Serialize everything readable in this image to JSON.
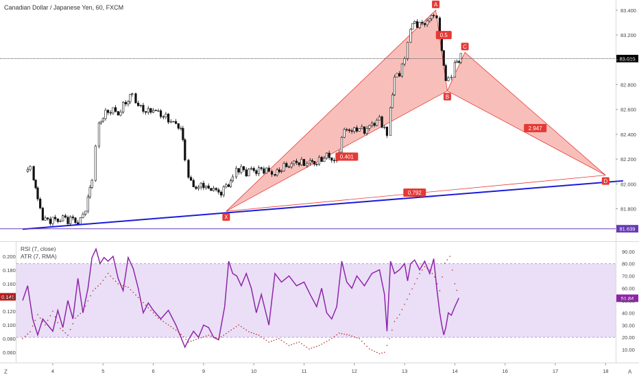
{
  "header": {
    "title": "Canadian Dollar / Japanese Yen, 60, FXCM"
  },
  "indicators": {
    "rsi_label": "RSI (7, close)",
    "atr_label": "ATR (7, RMA)"
  },
  "corners": {
    "left": "Z",
    "right": "A"
  },
  "chart_data": [
    {
      "type": "candlestick",
      "title": "Canadian Dollar / Japanese Yen, 60, FXCM",
      "xlabel": "",
      "ylabel": "",
      "x_ticks": [
        "4",
        "5",
        "6",
        "9",
        "10",
        "11",
        "12",
        "13",
        "14",
        "16",
        "17",
        "18",
        "19"
      ],
      "x_tick_day_index": [
        0,
        1,
        2,
        3,
        4,
        5,
        6,
        7,
        8,
        9,
        10,
        11,
        12
      ],
      "y_ticks": [
        "81.800",
        "82.000",
        "82.200",
        "82.400",
        "82.600",
        "82.800",
        "83.000",
        "83.200",
        "83.400"
      ],
      "ylim": [
        81.56,
        83.46
      ],
      "current_price": {
        "label": "83.010",
        "value": 83.01,
        "color": "#000000"
      },
      "support_level": {
        "label": "81.639",
        "value": 81.639,
        "color": "#673ab7"
      },
      "trendline": {
        "color": "#1a1adb",
        "from": {
          "day": -0.6,
          "price": 81.635
        },
        "to": {
          "day": 11.35,
          "price": 82.025
        }
      },
      "close_path": [
        [
          -0.55,
          82.1
        ],
        [
          -0.45,
          82.12
        ],
        [
          -0.38,
          82.05
        ],
        [
          -0.3,
          81.87
        ],
        [
          -0.2,
          81.73
        ],
        [
          -0.1,
          81.7
        ],
        [
          0.0,
          81.72
        ],
        [
          0.1,
          81.7
        ],
        [
          0.2,
          81.73
        ],
        [
          0.3,
          81.71
        ],
        [
          0.4,
          81.72
        ],
        [
          0.5,
          81.68
        ],
        [
          0.6,
          81.75
        ],
        [
          0.7,
          81.87
        ],
        [
          0.78,
          82.05
        ],
        [
          0.85,
          82.3
        ],
        [
          0.92,
          82.48
        ],
        [
          1.0,
          82.55
        ],
        [
          1.1,
          82.58
        ],
        [
          1.2,
          82.6
        ],
        [
          1.3,
          82.56
        ],
        [
          1.4,
          82.63
        ],
        [
          1.5,
          82.68
        ],
        [
          1.58,
          82.72
        ],
        [
          1.65,
          82.66
        ],
        [
          1.75,
          82.61
        ],
        [
          1.9,
          82.58
        ],
        [
          2.0,
          82.6
        ],
        [
          2.15,
          82.56
        ],
        [
          2.3,
          82.52
        ],
        [
          2.45,
          82.48
        ],
        [
          2.55,
          82.45
        ],
        [
          2.63,
          82.2
        ],
        [
          2.7,
          82.05
        ],
        [
          2.8,
          81.98
        ],
        [
          2.9,
          81.97
        ],
        [
          3.0,
          82.0
        ],
        [
          3.1,
          81.95
        ],
        [
          3.2,
          81.97
        ],
        [
          3.3,
          81.92
        ],
        [
          3.4,
          81.96
        ],
        [
          3.5,
          82.0
        ],
        [
          3.58,
          82.05
        ],
        [
          3.65,
          82.12
        ],
        [
          3.75,
          82.12
        ],
        [
          3.85,
          82.09
        ],
        [
          3.95,
          82.12
        ],
        [
          4.05,
          82.1
        ],
        [
          4.15,
          82.12
        ],
        [
          4.3,
          82.1
        ],
        [
          4.42,
          82.07
        ],
        [
          4.55,
          82.13
        ],
        [
          4.7,
          82.15
        ],
        [
          4.85,
          82.18
        ],
        [
          5.0,
          82.16
        ],
        [
          5.12,
          82.18
        ],
        [
          5.25,
          82.17
        ],
        [
          5.35,
          82.2
        ],
        [
          5.45,
          82.23
        ],
        [
          5.55,
          82.2
        ],
        [
          5.65,
          82.18
        ],
        [
          5.75,
          82.38
        ],
        [
          5.85,
          82.45
        ],
        [
          5.95,
          82.42
        ],
        [
          6.05,
          82.45
        ],
        [
          6.2,
          82.43
        ],
        [
          6.35,
          82.48
        ],
        [
          6.5,
          82.52
        ],
        [
          6.6,
          82.45
        ],
        [
          6.65,
          82.38
        ],
        [
          6.72,
          82.62
        ],
        [
          6.8,
          82.85
        ],
        [
          6.9,
          82.9
        ],
        [
          7.0,
          83.0
        ],
        [
          7.06,
          83.15
        ],
        [
          7.12,
          83.25
        ],
        [
          7.2,
          83.3
        ],
        [
          7.3,
          83.28
        ],
        [
          7.4,
          83.3
        ],
        [
          7.5,
          83.32
        ],
        [
          7.58,
          83.38
        ],
        [
          7.64,
          83.32
        ],
        [
          7.7,
          83.2
        ],
        [
          7.74,
          83.1
        ],
        [
          7.78,
          82.95
        ],
        [
          7.82,
          82.82
        ],
        [
          7.87,
          82.85
        ],
        [
          7.93,
          82.88
        ],
        [
          8.0,
          82.95
        ],
        [
          8.08,
          83.01
        ],
        [
          8.12,
          83.05
        ]
      ],
      "harmonic_pattern": {
        "points": [
          {
            "label": "X",
            "day": 3.45,
            "price": 81.78
          },
          {
            "label": "A",
            "day": 7.62,
            "price": 83.4
          },
          {
            "label": "B",
            "day": 7.85,
            "price": 82.75
          },
          {
            "label": "C",
            "day": 8.2,
            "price": 83.06
          },
          {
            "label": "D",
            "day": 11.0,
            "price": 82.07
          }
        ],
        "ratios": [
          {
            "label": "0.401",
            "day": 5.85,
            "price": 82.22
          },
          {
            "label": "0.5",
            "day": 7.78,
            "price": 83.2
          },
          {
            "label": "2.947",
            "day": 9.6,
            "price": 82.45
          },
          {
            "label": "0.792",
            "day": 7.2,
            "price": 81.93
          }
        ],
        "fill": "#f28b82",
        "stroke": "#e53935",
        "label_bg": "#e53935",
        "label_fg": "#ffffff"
      }
    },
    {
      "type": "line",
      "name": "RSI (7, close) / ATR (7, RMA)",
      "left_y_ticks": [
        "0.060",
        "0.080",
        "0.100",
        "0.120",
        "0.140",
        "0.160",
        "0.180",
        "0.200"
      ],
      "right_y_ticks": [
        "10.00",
        "20.00",
        "30.00",
        "40.00",
        "50.00",
        "60.00",
        "70.00",
        "80.00",
        "90.00"
      ],
      "rsi_ylim": [
        0,
        96
      ],
      "band": [
        20,
        80
      ],
      "rsi_last": {
        "label": "51.84",
        "value": 51.84
      },
      "atr_last": {
        "label": "0.141",
        "value": 0.141
      },
      "rsi_color": "#8e24aa",
      "atr_color": "#b71c1c",
      "rsi_points": [
        [
          -0.6,
          50
        ],
        [
          -0.5,
          62
        ],
        [
          -0.4,
          35
        ],
        [
          -0.3,
          22
        ],
        [
          -0.2,
          35
        ],
        [
          -0.1,
          30
        ],
        [
          0.0,
          25
        ],
        [
          0.1,
          42
        ],
        [
          0.2,
          28
        ],
        [
          0.3,
          50
        ],
        [
          0.4,
          35
        ],
        [
          0.5,
          68
        ],
        [
          0.6,
          40
        ],
        [
          0.7,
          60
        ],
        [
          0.78,
          85
        ],
        [
          0.86,
          92
        ],
        [
          0.94,
          80
        ],
        [
          1.02,
          85
        ],
        [
          1.1,
          82
        ],
        [
          1.2,
          86
        ],
        [
          1.3,
          68
        ],
        [
          1.4,
          58
        ],
        [
          1.5,
          85
        ],
        [
          1.6,
          76
        ],
        [
          1.7,
          60
        ],
        [
          1.8,
          40
        ],
        [
          1.9,
          48
        ],
        [
          2.0,
          42
        ],
        [
          2.15,
          35
        ],
        [
          2.3,
          42
        ],
        [
          2.45,
          30
        ],
        [
          2.55,
          20
        ],
        [
          2.63,
          12
        ],
        [
          2.7,
          18
        ],
        [
          2.8,
          25
        ],
        [
          2.9,
          20
        ],
        [
          3.0,
          30
        ],
        [
          3.1,
          28
        ],
        [
          3.2,
          20
        ],
        [
          3.3,
          18
        ],
        [
          3.42,
          45
        ],
        [
          3.5,
          82
        ],
        [
          3.58,
          72
        ],
        [
          3.66,
          70
        ],
        [
          3.75,
          62
        ],
        [
          3.85,
          72
        ],
        [
          3.95,
          60
        ],
        [
          4.05,
          40
        ],
        [
          4.15,
          55
        ],
        [
          4.3,
          30
        ],
        [
          4.42,
          72
        ],
        [
          4.55,
          65
        ],
        [
          4.7,
          70
        ],
        [
          4.85,
          62
        ],
        [
          5.0,
          65
        ],
        [
          5.12,
          55
        ],
        [
          5.25,
          45
        ],
        [
          5.35,
          60
        ],
        [
          5.45,
          40
        ],
        [
          5.55,
          35
        ],
        [
          5.65,
          45
        ],
        [
          5.75,
          82
        ],
        [
          5.85,
          65
        ],
        [
          5.95,
          60
        ],
        [
          6.05,
          70
        ],
        [
          6.2,
          62
        ],
        [
          6.35,
          72
        ],
        [
          6.5,
          75
        ],
        [
          6.6,
          55
        ],
        [
          6.65,
          25
        ],
        [
          6.72,
          82
        ],
        [
          6.8,
          72
        ],
        [
          6.9,
          75
        ],
        [
          7.0,
          80
        ],
        [
          7.06,
          66
        ],
        [
          7.12,
          80
        ],
        [
          7.2,
          83
        ],
        [
          7.3,
          75
        ],
        [
          7.4,
          82
        ],
        [
          7.5,
          72
        ],
        [
          7.58,
          84
        ],
        [
          7.64,
          60
        ],
        [
          7.7,
          40
        ],
        [
          7.74,
          30
        ],
        [
          7.78,
          22
        ],
        [
          7.82,
          28
        ],
        [
          7.87,
          40
        ],
        [
          7.93,
          38
        ],
        [
          8.0,
          45
        ],
        [
          8.08,
          52
        ]
      ],
      "atr_points": [
        [
          -0.6,
          0.08
        ],
        [
          -0.45,
          0.09
        ],
        [
          -0.3,
          0.115
        ],
        [
          -0.15,
          0.1
        ],
        [
          0.0,
          0.12
        ],
        [
          0.15,
          0.095
        ],
        [
          0.3,
          0.085
        ],
        [
          0.45,
          0.11
        ],
        [
          0.6,
          0.12
        ],
        [
          0.8,
          0.15
        ],
        [
          0.95,
          0.16
        ],
        [
          1.1,
          0.175
        ],
        [
          1.3,
          0.16
        ],
        [
          1.5,
          0.155
        ],
        [
          1.7,
          0.14
        ],
        [
          1.9,
          0.125
        ],
        [
          2.1,
          0.11
        ],
        [
          2.3,
          0.1
        ],
        [
          2.5,
          0.09
        ],
        [
          2.7,
          0.075
        ],
        [
          2.9,
          0.08
        ],
        [
          3.1,
          0.085
        ],
        [
          3.3,
          0.08
        ],
        [
          3.5,
          0.09
        ],
        [
          3.7,
          0.1
        ],
        [
          3.9,
          0.09
        ],
        [
          4.1,
          0.085
        ],
        [
          4.3,
          0.075
        ],
        [
          4.5,
          0.08
        ],
        [
          4.7,
          0.07
        ],
        [
          4.9,
          0.075
        ],
        [
          5.1,
          0.065
        ],
        [
          5.3,
          0.07
        ],
        [
          5.5,
          0.078
        ],
        [
          5.7,
          0.088
        ],
        [
          5.9,
          0.085
        ],
        [
          6.1,
          0.08
        ],
        [
          6.3,
          0.065
        ],
        [
          6.5,
          0.058
        ],
        [
          6.6,
          0.06
        ],
        [
          6.7,
          0.08
        ],
        [
          6.8,
          0.105
        ],
        [
          6.9,
          0.115
        ],
        [
          7.0,
          0.13
        ],
        [
          7.1,
          0.145
        ],
        [
          7.2,
          0.16
        ],
        [
          7.3,
          0.175
        ],
        [
          7.4,
          0.185
        ],
        [
          7.5,
          0.18
        ],
        [
          7.6,
          0.17
        ],
        [
          7.7,
          0.15
        ],
        [
          7.8,
          0.19
        ],
        [
          7.9,
          0.2
        ],
        [
          8.0,
          0.16
        ],
        [
          8.08,
          0.141
        ]
      ]
    }
  ]
}
